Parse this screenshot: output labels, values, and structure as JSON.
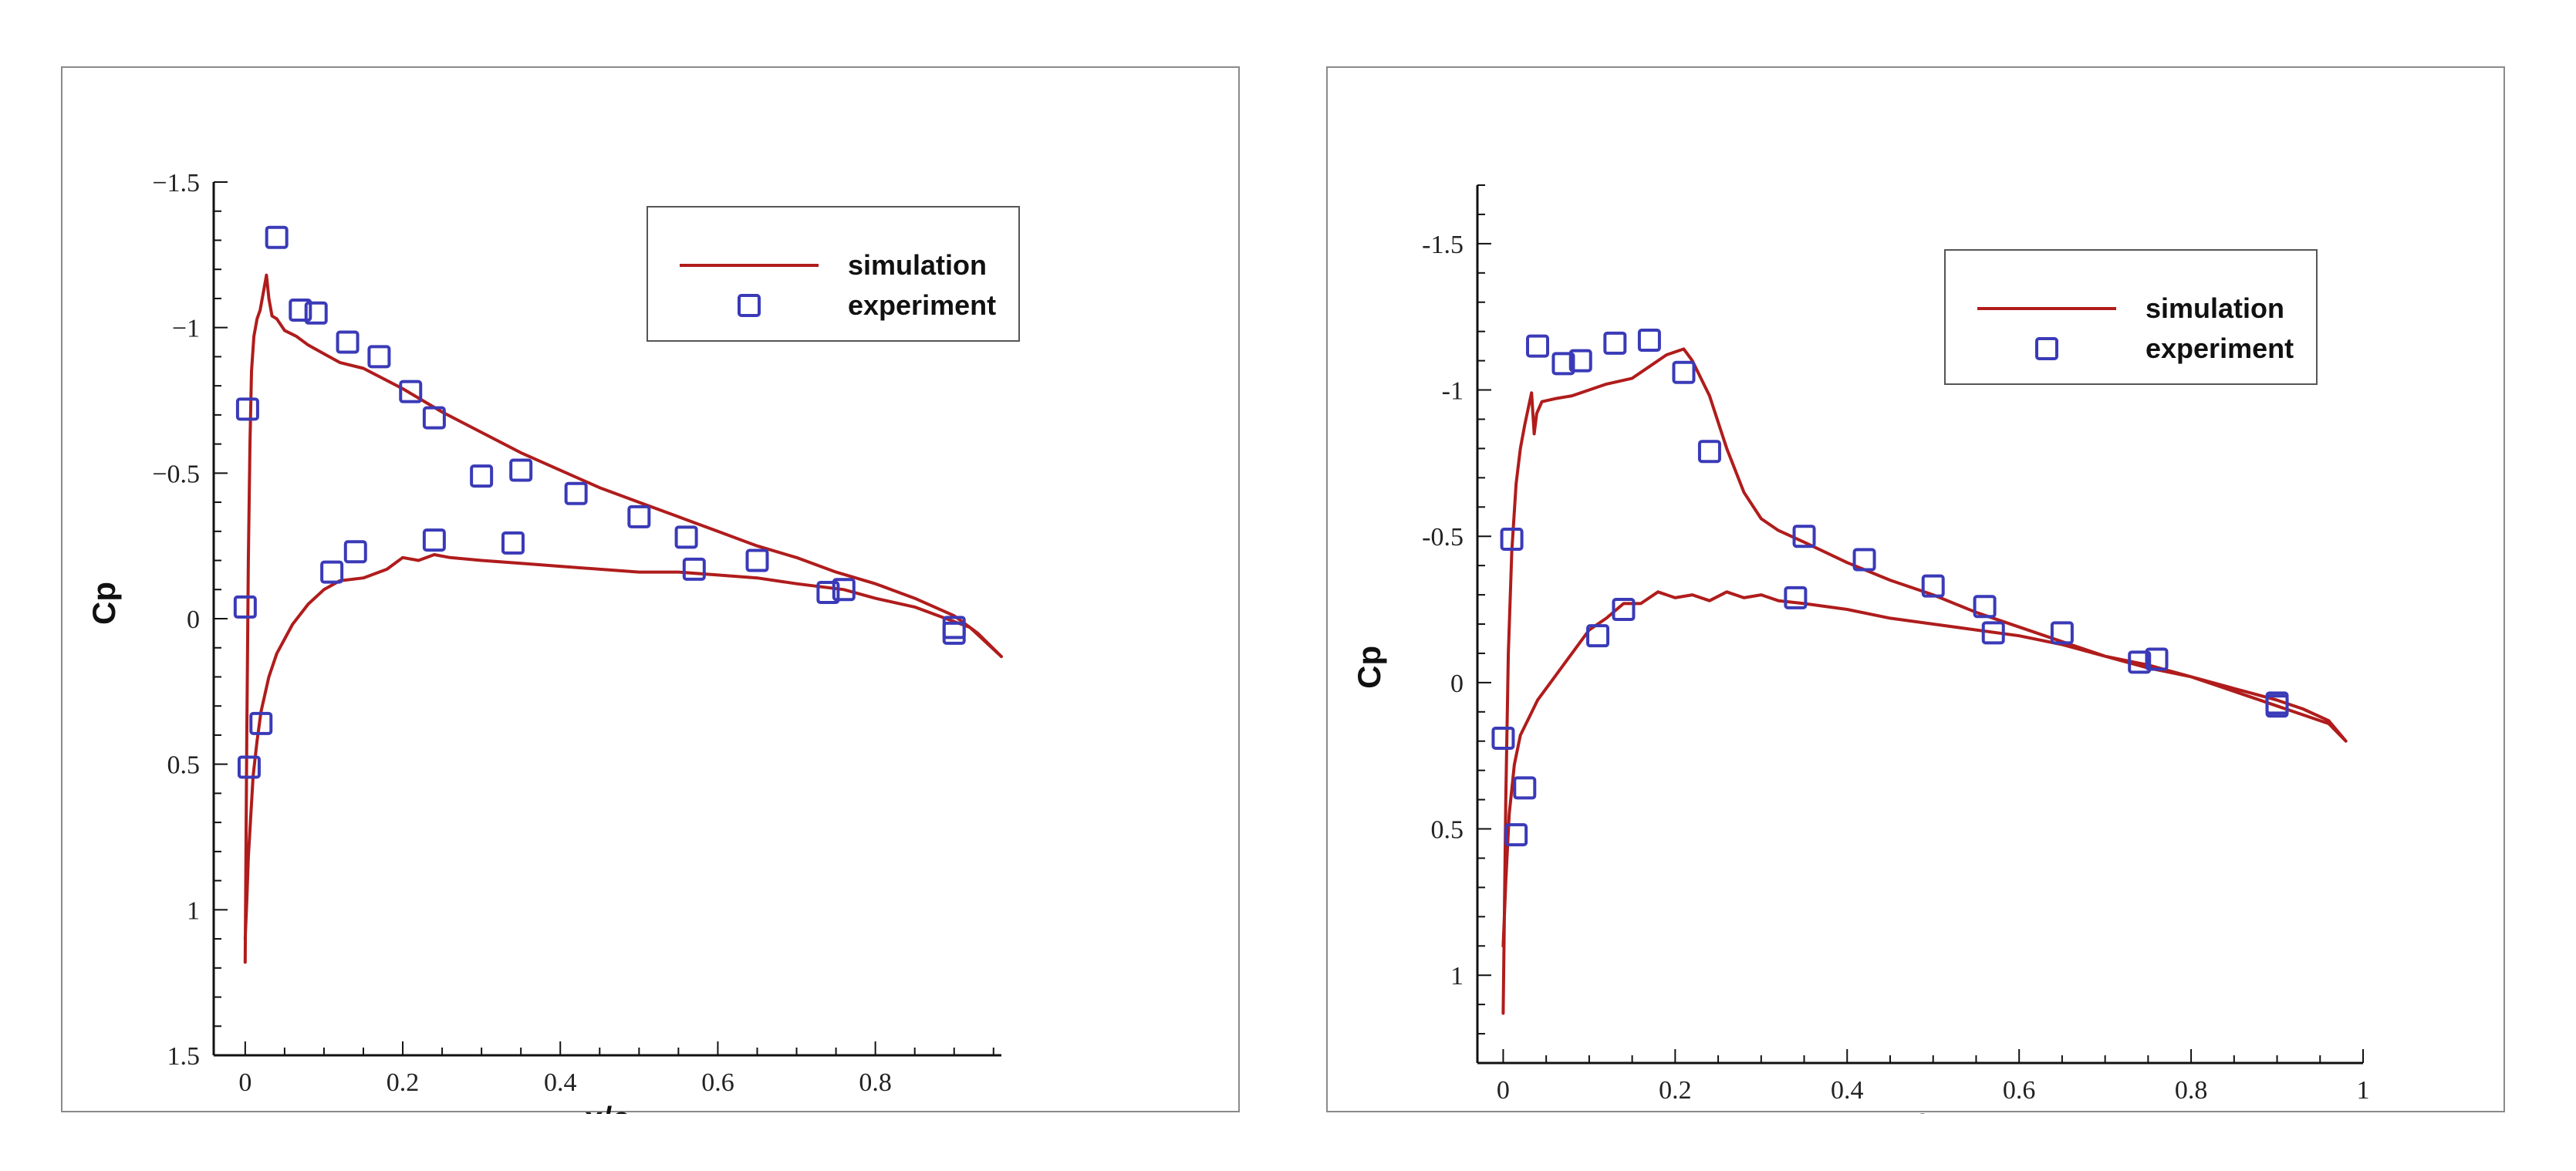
{
  "chart_data": [
    {
      "type": "line",
      "xlabel": "x/c",
      "ylabel": "Cp",
      "xlim": [
        -0.04,
        0.96
      ],
      "ylim": [
        1.5,
        -1.5
      ],
      "y_inverted": true,
      "xticks": [
        0,
        0.2,
        0.4,
        0.6,
        0.8
      ],
      "xtick_labels": [
        "0",
        "0.2",
        "0.4",
        "0.6",
        "0.8"
      ],
      "yticks": [
        -1.5,
        -1,
        -0.5,
        0,
        0.5,
        1,
        1.5
      ],
      "ytick_labels": [
        "−1.5",
        "−1",
        "−0.5",
        "0",
        "0.5",
        "1",
        "1.5"
      ],
      "legend": [
        "simulation",
        "experiment"
      ],
      "legend_position": "top-right",
      "grid": false,
      "series": [
        {
          "name": "simulation",
          "kind": "line",
          "color": "#b01c1c",
          "x": [
            0.0,
            0.002,
            0.004,
            0.006,
            0.008,
            0.011,
            0.015,
            0.019,
            0.023,
            0.027,
            0.03,
            0.034,
            0.04,
            0.05,
            0.065,
            0.08,
            0.1,
            0.12,
            0.15,
            0.2,
            0.25,
            0.3,
            0.35,
            0.4,
            0.45,
            0.5,
            0.55,
            0.6,
            0.65,
            0.7,
            0.75,
            0.8,
            0.85,
            0.9,
            0.93,
            0.96,
            0.92,
            0.89,
            0.85,
            0.8,
            0.76,
            0.7,
            0.65,
            0.6,
            0.55,
            0.5,
            0.45,
            0.4,
            0.35,
            0.3,
            0.26,
            0.24,
            0.22,
            0.2,
            0.18,
            0.15,
            0.12,
            0.1,
            0.08,
            0.06,
            0.04,
            0.03,
            0.02,
            0.015,
            0.01,
            0.007,
            0.004,
            0.002,
            0.0
          ],
          "y": [
            1.18,
            0.4,
            -0.2,
            -0.6,
            -0.85,
            -0.97,
            -1.03,
            -1.06,
            -1.12,
            -1.18,
            -1.1,
            -1.04,
            -1.03,
            -0.99,
            -0.97,
            -0.94,
            -0.91,
            -0.88,
            -0.86,
            -0.79,
            -0.71,
            -0.64,
            -0.57,
            -0.51,
            -0.45,
            -0.4,
            -0.35,
            -0.3,
            -0.25,
            -0.21,
            -0.16,
            -0.12,
            -0.07,
            -0.01,
            0.05,
            0.13,
            0.03,
            0.0,
            -0.04,
            -0.07,
            -0.1,
            -0.12,
            -0.14,
            -0.15,
            -0.16,
            -0.16,
            -0.17,
            -0.18,
            -0.19,
            -0.2,
            -0.21,
            -0.22,
            -0.2,
            -0.21,
            -0.17,
            -0.14,
            -0.13,
            -0.1,
            -0.05,
            0.02,
            0.12,
            0.2,
            0.32,
            0.42,
            0.54,
            0.68,
            0.82,
            0.97,
            1.1
          ]
        },
        {
          "name": "experiment",
          "kind": "marker",
          "color": "#3a3ab8",
          "x": [
            0.0,
            0.003,
            0.005,
            0.02,
            0.04,
            0.07,
            0.09,
            0.11,
            0.13,
            0.14,
            0.17,
            0.21,
            0.24,
            0.24,
            0.3,
            0.34,
            0.35,
            0.42,
            0.5,
            0.56,
            0.57,
            0.65,
            0.74,
            0.76,
            0.9,
            0.9
          ],
          "y": [
            -0.04,
            -0.72,
            0.51,
            0.36,
            -1.31,
            -1.06,
            -1.05,
            -0.16,
            -0.95,
            -0.23,
            -0.9,
            -0.78,
            -0.69,
            -0.27,
            -0.49,
            -0.26,
            -0.51,
            -0.43,
            -0.35,
            -0.28,
            -0.17,
            -0.2,
            -0.09,
            -0.1,
            0.03,
            0.05
          ]
        }
      ]
    },
    {
      "type": "line",
      "xlabel": "x/c",
      "ylabel": "Cp",
      "xlim": [
        -0.03,
        1.0
      ],
      "ylim": [
        1.3,
        -1.7
      ],
      "y_inverted": true,
      "xticks": [
        0,
        0.2,
        0.4,
        0.6,
        0.8,
        1
      ],
      "xtick_labels": [
        "0",
        "0.2",
        "0.4",
        "0.6",
        "0.8",
        "1"
      ],
      "yticks": [
        -1.5,
        -1,
        -0.5,
        0,
        0.5,
        1
      ],
      "ytick_labels": [
        "-1.5",
        "-1",
        "-0.5",
        "0",
        "0.5",
        "1"
      ],
      "legend": [
        "simulation",
        "experiment"
      ],
      "legend_position": "top-right",
      "grid": false,
      "series": [
        {
          "name": "simulation",
          "kind": "line",
          "color": "#b01c1c",
          "x": [
            0.0,
            0.003,
            0.006,
            0.01,
            0.015,
            0.02,
            0.025,
            0.03,
            0.033,
            0.036,
            0.039,
            0.045,
            0.06,
            0.08,
            0.1,
            0.12,
            0.15,
            0.17,
            0.19,
            0.21,
            0.22,
            0.24,
            0.26,
            0.28,
            0.3,
            0.32,
            0.35,
            0.4,
            0.45,
            0.5,
            0.55,
            0.6,
            0.65,
            0.7,
            0.75,
            0.8,
            0.85,
            0.9,
            0.93,
            0.96,
            0.98,
            0.96,
            0.93,
            0.9,
            0.85,
            0.8,
            0.75,
            0.7,
            0.65,
            0.6,
            0.55,
            0.5,
            0.45,
            0.4,
            0.35,
            0.32,
            0.3,
            0.28,
            0.26,
            0.24,
            0.22,
            0.2,
            0.18,
            0.16,
            0.14,
            0.12,
            0.1,
            0.08,
            0.06,
            0.04,
            0.03,
            0.02,
            0.013,
            0.007,
            0.003,
            0.0
          ],
          "y": [
            1.13,
            0.4,
            -0.1,
            -0.45,
            -0.68,
            -0.8,
            -0.88,
            -0.95,
            -0.99,
            -0.85,
            -0.92,
            -0.96,
            -0.97,
            -0.98,
            -1.0,
            -1.02,
            -1.04,
            -1.08,
            -1.12,
            -1.14,
            -1.1,
            -0.98,
            -0.8,
            -0.65,
            -0.56,
            -0.52,
            -0.48,
            -0.41,
            -0.35,
            -0.3,
            -0.24,
            -0.19,
            -0.14,
            -0.09,
            -0.05,
            -0.02,
            0.03,
            0.08,
            0.11,
            0.14,
            0.2,
            0.13,
            0.09,
            0.06,
            0.02,
            -0.02,
            -0.06,
            -0.09,
            -0.13,
            -0.16,
            -0.18,
            -0.2,
            -0.22,
            -0.25,
            -0.27,
            -0.28,
            -0.3,
            -0.29,
            -0.31,
            -0.28,
            -0.3,
            -0.29,
            -0.31,
            -0.27,
            -0.27,
            -0.22,
            -0.18,
            -0.1,
            -0.02,
            0.06,
            0.12,
            0.18,
            0.28,
            0.45,
            0.68,
            0.9
          ]
        },
        {
          "name": "experiment",
          "kind": "marker",
          "color": "#3a3ab8",
          "x": [
            0.0,
            0.01,
            0.015,
            0.025,
            0.04,
            0.07,
            0.09,
            0.11,
            0.13,
            0.14,
            0.17,
            0.21,
            0.24,
            0.34,
            0.35,
            0.42,
            0.5,
            0.56,
            0.57,
            0.65,
            0.74,
            0.76,
            0.9,
            0.9
          ],
          "y": [
            0.19,
            -0.49,
            0.52,
            0.36,
            -1.15,
            -1.09,
            -1.1,
            -0.16,
            -1.16,
            -0.25,
            -1.17,
            -1.06,
            -0.79,
            -0.29,
            -0.5,
            -0.42,
            -0.33,
            -0.26,
            -0.17,
            -0.17,
            -0.07,
            -0.08,
            0.07,
            0.08
          ]
        }
      ]
    }
  ]
}
